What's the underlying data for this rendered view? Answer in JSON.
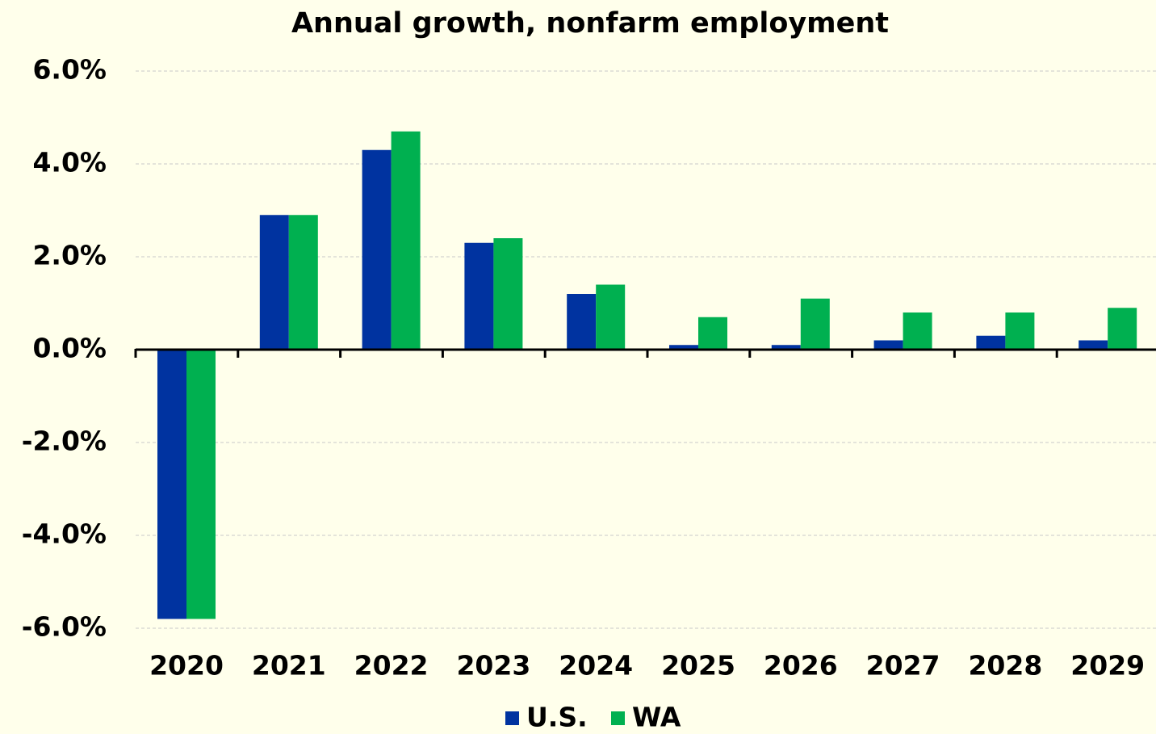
{
  "chart_data": {
    "type": "bar",
    "title": "Annual growth, nonfarm employment",
    "categories": [
      "2020",
      "2021",
      "2022",
      "2023",
      "2024",
      "2025",
      "2026",
      "2027",
      "2028",
      "2029"
    ],
    "series": [
      {
        "name": "U.S.",
        "color": "#0033a0",
        "values": [
          -5.8,
          2.9,
          4.3,
          2.3,
          1.2,
          0.1,
          0.1,
          0.2,
          0.3,
          0.2
        ]
      },
      {
        "name": "WA",
        "color": "#00b050",
        "values": [
          -5.8,
          2.9,
          4.7,
          2.4,
          1.4,
          0.7,
          1.1,
          0.8,
          0.8,
          0.9
        ]
      }
    ],
    "ylim": [
      -6,
      6
    ],
    "yticks": [
      {
        "value": -6,
        "label": "-6.0%"
      },
      {
        "value": -4,
        "label": "-4.0%"
      },
      {
        "value": -2,
        "label": "-2.0%"
      },
      {
        "value": 0,
        "label": "0.0%"
      },
      {
        "value": 2,
        "label": "2.0%"
      },
      {
        "value": 4,
        "label": "4.0%"
      },
      {
        "value": 6,
        "label": "6.0%"
      }
    ],
    "grid": true,
    "legend": "bottom"
  }
}
